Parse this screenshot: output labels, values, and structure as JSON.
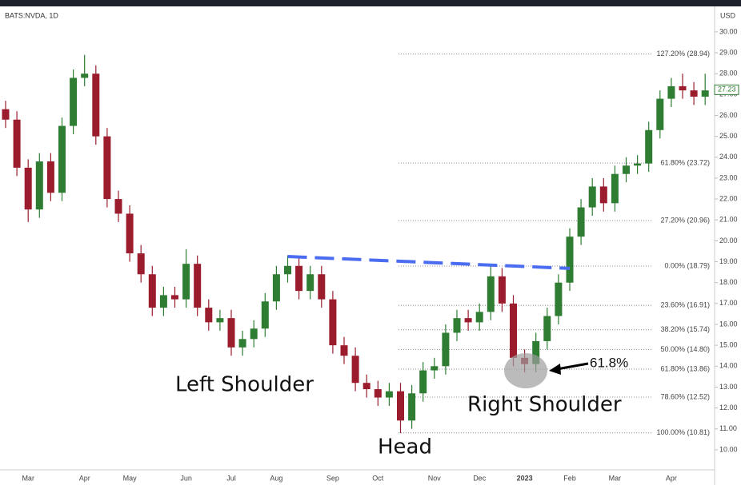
{
  "chart_data": {
    "type": "candlestick",
    "title": "BATS:NVDA, 1D",
    "currency": "USD",
    "categories": [
      null,
      null,
      "Mar",
      null,
      null,
      null,
      null,
      "Apr",
      null,
      null,
      null,
      "May",
      null,
      null,
      null,
      null,
      "Jun",
      null,
      null,
      null,
      "Jul",
      null,
      null,
      null,
      "Aug",
      null,
      null,
      null,
      null,
      "Sep",
      null,
      null,
      null,
      "Oct",
      null,
      null,
      null,
      null,
      "Nov",
      null,
      null,
      null,
      "Dec",
      null,
      null,
      null,
      "2023",
      null,
      null,
      null,
      "Feb",
      null,
      null,
      null,
      "Mar",
      null,
      null,
      null,
      null,
      "Apr",
      null,
      null,
      null
    ],
    "series": [
      {
        "open": [
          26.3,
          25.8,
          23.5,
          21.5,
          23.8,
          22.3,
          25.5,
          27.8,
          28.0,
          25.0,
          22.0,
          21.3,
          19.4,
          18.4,
          16.8,
          17.4,
          17.2,
          18.9,
          16.8,
          16.1,
          16.3,
          14.9,
          15.3,
          15.8,
          17.1,
          18.4,
          18.8,
          17.6,
          18.4,
          17.2,
          15.0,
          14.5,
          13.2,
          12.9,
          12.5,
          12.8,
          11.4,
          12.7,
          13.8,
          14.0,
          15.6,
          16.3,
          16.1,
          16.6,
          18.3,
          17.0,
          14.4,
          14.1,
          15.2,
          16.4,
          18.0,
          20.2,
          21.6,
          22.6,
          21.8,
          23.2,
          23.6,
          23.7,
          25.3,
          26.8,
          27.4,
          27.2,
          26.9
        ],
        "high": [
          26.7,
          26.2,
          23.9,
          24.2,
          24.2,
          25.9,
          28.2,
          28.9,
          28.4,
          25.4,
          22.4,
          21.7,
          19.8,
          18.8,
          17.8,
          17.8,
          19.6,
          19.3,
          17.2,
          16.7,
          16.7,
          15.7,
          16.2,
          17.5,
          18.8,
          19.3,
          19.2,
          18.8,
          18.8,
          17.6,
          15.4,
          14.9,
          13.6,
          13.3,
          13.2,
          13.2,
          13.1,
          14.2,
          14.4,
          16.0,
          16.7,
          16.7,
          17.0,
          18.9,
          18.7,
          17.4,
          14.8,
          15.6,
          16.8,
          18.4,
          20.6,
          22.0,
          23.0,
          23.0,
          23.6,
          24.0,
          24.1,
          25.7,
          27.2,
          27.8,
          28.0,
          27.6,
          28.0
        ],
        "low": [
          25.4,
          23.1,
          20.9,
          21.1,
          21.9,
          21.9,
          25.1,
          27.4,
          24.6,
          21.6,
          20.9,
          19.0,
          18.0,
          16.4,
          16.4,
          16.8,
          16.8,
          16.4,
          15.7,
          15.7,
          14.5,
          14.5,
          14.9,
          15.4,
          16.7,
          18.0,
          17.2,
          17.2,
          16.8,
          14.6,
          14.1,
          12.8,
          12.5,
          12.1,
          12.1,
          10.8,
          11.0,
          12.3,
          13.4,
          13.6,
          15.2,
          15.7,
          15.7,
          16.2,
          16.6,
          14.0,
          13.7,
          13.7,
          14.8,
          16.0,
          17.6,
          19.8,
          21.2,
          21.4,
          21.4,
          22.8,
          23.2,
          23.3,
          24.9,
          26.4,
          26.8,
          26.5,
          26.5
        ],
        "close": [
          25.8,
          23.5,
          21.5,
          23.8,
          22.3,
          25.5,
          27.8,
          28.0,
          25.0,
          22.0,
          21.3,
          19.4,
          18.4,
          16.8,
          17.4,
          17.2,
          18.9,
          16.8,
          16.1,
          16.3,
          14.9,
          15.3,
          15.8,
          17.1,
          18.4,
          18.8,
          17.6,
          18.4,
          17.2,
          15.0,
          14.5,
          13.2,
          12.9,
          12.5,
          12.8,
          11.4,
          12.7,
          13.8,
          14.0,
          15.6,
          16.3,
          16.1,
          16.6,
          18.3,
          17.0,
          14.4,
          14.1,
          15.2,
          16.4,
          18.0,
          20.2,
          21.6,
          22.6,
          21.8,
          23.2,
          23.6,
          23.7,
          25.3,
          26.8,
          27.4,
          27.2,
          26.9,
          27.2
        ]
      }
    ],
    "up_color": "#2e7d32",
    "down_color": "#9b1c2c",
    "ylim": [
      9.04,
      31.22
    ],
    "yticks": [
      {
        "value": 10,
        "label": "10.00"
      },
      {
        "value": 11,
        "label": "11.00"
      },
      {
        "value": 12,
        "label": "12.00"
      },
      {
        "value": 13,
        "label": "13.00"
      },
      {
        "value": 14,
        "label": "14.00"
      },
      {
        "value": 15,
        "label": "15.00"
      },
      {
        "value": 16,
        "label": "16.00"
      },
      {
        "value": 17,
        "label": "17.00"
      },
      {
        "value": 18,
        "label": "18.00"
      },
      {
        "value": 19,
        "label": "19.00"
      },
      {
        "value": 20,
        "label": "20.00"
      },
      {
        "value": 21,
        "label": "21.00"
      },
      {
        "value": 22,
        "label": "22.00"
      },
      {
        "value": 23,
        "label": "23.00"
      },
      {
        "value": 24,
        "label": "24.00"
      },
      {
        "value": 25,
        "label": "25.00"
      },
      {
        "value": 26,
        "label": "26.00"
      },
      {
        "value": 27,
        "label": "27.00"
      },
      {
        "value": 28,
        "label": "28.00"
      },
      {
        "value": 29,
        "label": "29.00"
      },
      {
        "value": 30,
        "label": "30.00"
      }
    ],
    "last_price": 27.23,
    "fib_levels": [
      {
        "value": 28.94,
        "label": "127.20% (28.94)"
      },
      {
        "value": 23.72,
        "label": "61.80% (23.72)"
      },
      {
        "value": 20.96,
        "label": "27.20% (20.96)"
      },
      {
        "value": 18.79,
        "label": "0.00% (18.79)"
      },
      {
        "value": 16.91,
        "label": "23.60% (16.91)"
      },
      {
        "value": 15.74,
        "label": "38.20% (15.74)"
      },
      {
        "value": 14.8,
        "label": "50.00% (14.80)"
      },
      {
        "value": 13.86,
        "label": "61.80% (13.86)"
      },
      {
        "value": 12.52,
        "label": "78.60% (12.52)"
      },
      {
        "value": 10.81,
        "label": "100.00% (10.81)"
      }
    ],
    "neckline": {
      "x": [
        25,
        50
      ],
      "values": [
        19.25,
        18.68
      ],
      "color": "#4a6cf0"
    },
    "annotations": [
      "Left Shoulder",
      "Head",
      "Right Shoulder",
      "61.8%"
    ]
  }
}
